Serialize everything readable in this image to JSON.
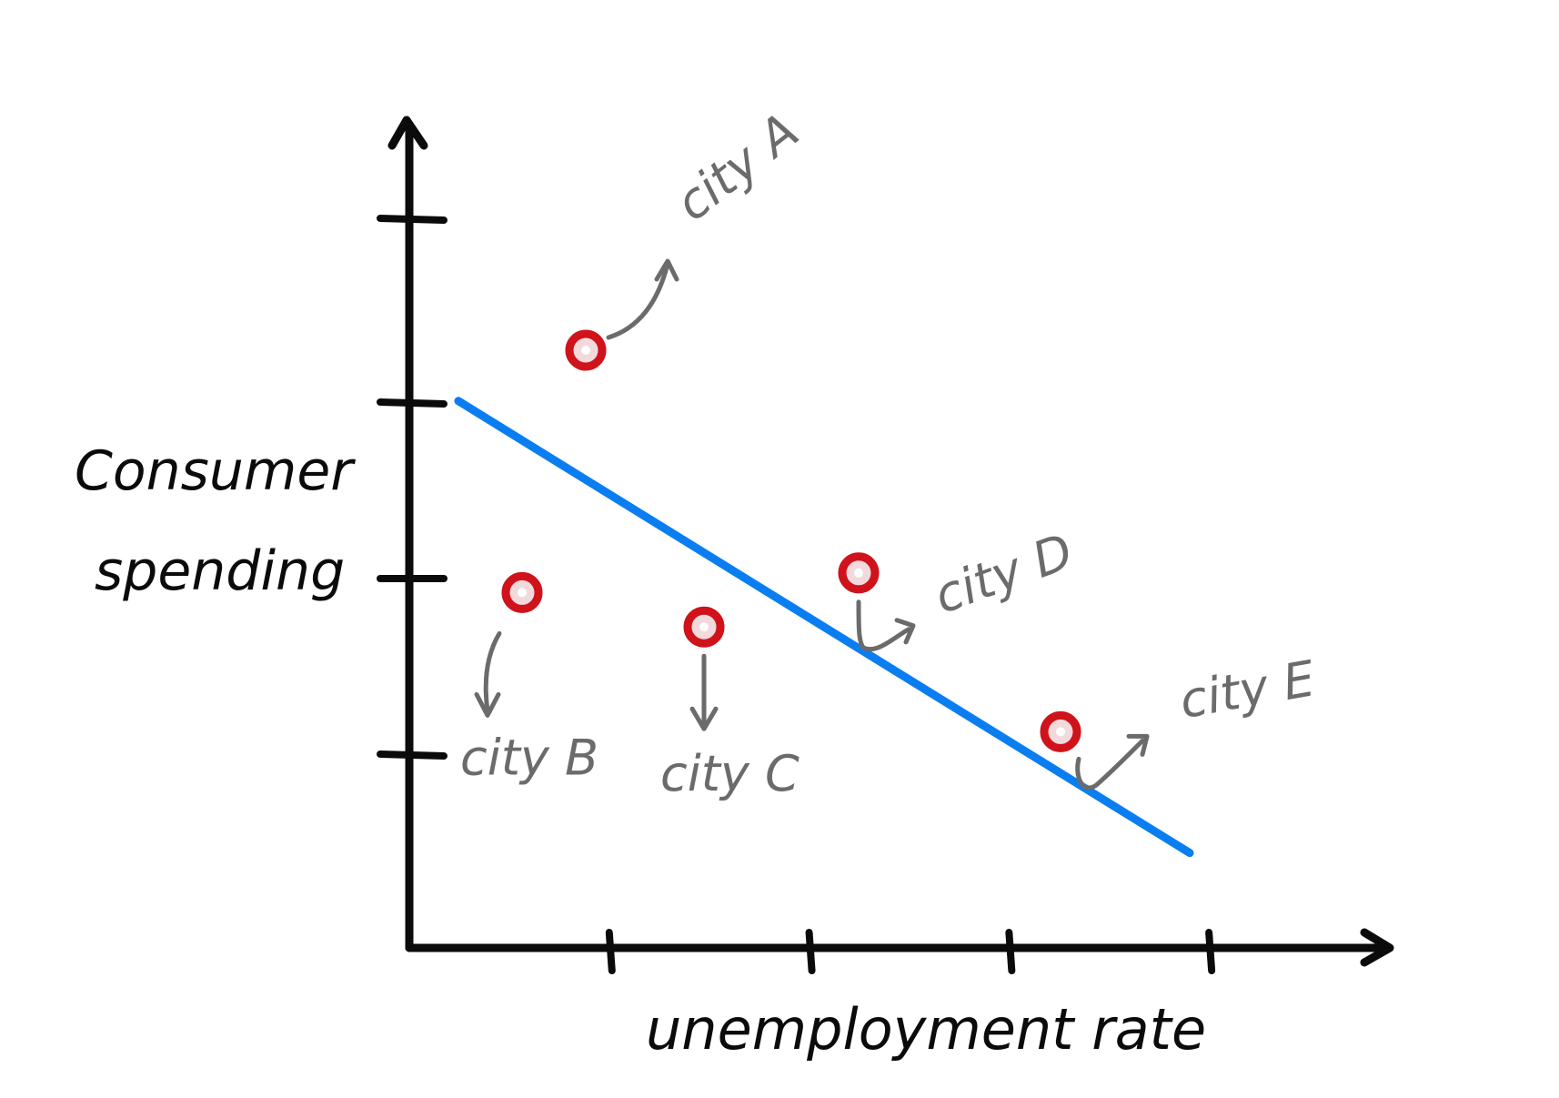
{
  "chart_data": {
    "type": "scatter",
    "xlabel": "unemployment rate",
    "ylabel_lines": [
      "Consumer",
      "spending"
    ],
    "x_ticks": 4,
    "y_ticks": 4,
    "xlim": [
      0,
      5
    ],
    "ylim": [
      0,
      5
    ],
    "points": [
      {
        "label": "city A",
        "x": 0.97,
        "y": 3.65
      },
      {
        "label": "city B",
        "x": 0.62,
        "y": 2.17
      },
      {
        "label": "city C",
        "x": 1.62,
        "y": 1.96
      },
      {
        "label": "city D",
        "x": 2.47,
        "y": 2.29
      },
      {
        "label": "city E",
        "x": 3.58,
        "y": 1.32
      }
    ],
    "trend_line": {
      "x": [
        0.27,
        4.29
      ],
      "y": [
        3.34,
        0.58
      ]
    },
    "legend": "none",
    "grid": false
  },
  "colors": {
    "axis": "#0b0b0b",
    "trend_line": "#0a7ef0",
    "point": "#d0121b",
    "label": "#6b6b6b"
  }
}
